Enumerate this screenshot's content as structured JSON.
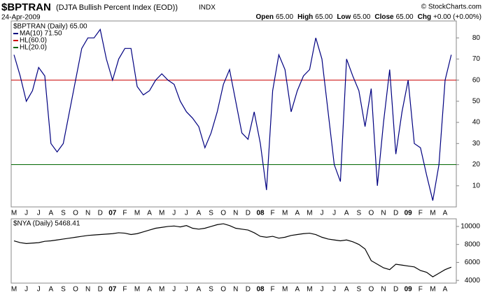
{
  "header": {
    "symbol": "$BPTRAN",
    "description": "(DJTA Bullish Percent Index (EOD))",
    "exchange": "INDX",
    "date": "24-Apr-2009",
    "copyright": "© StockCharts.com",
    "quote": [
      {
        "label": "Open",
        "value": "65.00"
      },
      {
        "label": "High",
        "value": "65.00"
      },
      {
        "label": "Low",
        "value": "65.00"
      },
      {
        "label": "Close",
        "value": "65.00"
      },
      {
        "label": "Chg",
        "value": "+0.00 (+0.00%)"
      }
    ]
  },
  "chart_data": [
    {
      "type": "line",
      "legend_title": "$BPTRAN (Daily) 65.00",
      "categories": [
        "M",
        null,
        "J",
        null,
        "J",
        null,
        "A",
        null,
        "S",
        null,
        "O",
        null,
        "N",
        null,
        "D",
        null,
        "07",
        null,
        "F",
        null,
        "M",
        null,
        "A",
        null,
        "M",
        null,
        "J",
        null,
        "J",
        null,
        "A",
        null,
        "S",
        null,
        "O",
        null,
        "N",
        null,
        "D",
        null,
        "08",
        null,
        "F",
        null,
        "M",
        null,
        "A",
        null,
        "M",
        null,
        "J",
        null,
        "J",
        null,
        "A",
        null,
        "S",
        null,
        "O",
        null,
        "N",
        null,
        "D",
        null,
        "09",
        null,
        "F",
        null,
        "M",
        null,
        "A",
        null
      ],
      "series": [
        {
          "name": "MA(10) 71.50",
          "color": "#000080",
          "values": [
            72,
            62,
            50,
            55,
            66,
            62,
            30,
            26,
            30,
            45,
            60,
            75,
            80,
            80,
            84,
            70,
            60,
            70,
            75,
            75,
            57,
            53,
            55,
            60,
            63,
            60,
            58,
            50,
            45,
            42,
            38,
            28,
            35,
            45,
            58,
            65,
            50,
            35,
            32,
            45,
            30,
            8,
            55,
            72,
            65,
            45,
            55,
            62,
            65,
            80,
            70,
            45,
            20,
            12,
            70,
            62,
            55,
            38,
            56,
            10,
            40,
            65,
            25,
            45,
            60,
            30,
            28,
            15,
            3,
            20,
            60,
            72
          ]
        }
      ],
      "reference_lines": [
        {
          "name": "HL(60.0)",
          "value": 60,
          "color": "#cc0000"
        },
        {
          "name": "HL(20.0)",
          "value": 20,
          "color": "#006600"
        }
      ],
      "ylim": [
        0,
        88
      ],
      "yticks": [
        10,
        20,
        30,
        40,
        50,
        60,
        70,
        80
      ],
      "grid": false
    },
    {
      "type": "line",
      "legend_title": "$NYA (Daily) 5468.41",
      "categories": [
        "M",
        null,
        "J",
        null,
        "J",
        null,
        "A",
        null,
        "S",
        null,
        "O",
        null,
        "N",
        null,
        "D",
        null,
        "07",
        null,
        "F",
        null,
        "M",
        null,
        "A",
        null,
        "M",
        null,
        "J",
        null,
        "J",
        null,
        "A",
        null,
        "S",
        null,
        "O",
        null,
        "N",
        null,
        "D",
        null,
        "08",
        null,
        "F",
        null,
        "M",
        null,
        "A",
        null,
        "M",
        null,
        "J",
        null,
        "J",
        null,
        "A",
        null,
        "S",
        null,
        "O",
        null,
        "N",
        null,
        "D",
        null,
        "09",
        null,
        "F",
        null,
        "M",
        null,
        "A",
        null
      ],
      "series": [
        {
          "name": "$NYA",
          "color": "#000000",
          "values": [
            8400,
            8200,
            8100,
            8150,
            8200,
            8350,
            8400,
            8500,
            8600,
            8700,
            8800,
            8900,
            9000,
            9050,
            9100,
            9150,
            9200,
            9300,
            9250,
            9100,
            9200,
            9400,
            9600,
            9800,
            9900,
            10000,
            10050,
            9950,
            10100,
            9800,
            9700,
            9800,
            10000,
            10200,
            10300,
            10100,
            9800,
            9700,
            9600,
            9300,
            8900,
            8800,
            8900,
            8700,
            8800,
            9000,
            9100,
            9200,
            9250,
            9100,
            8800,
            8600,
            8500,
            8400,
            8500,
            8300,
            8000,
            7500,
            6200,
            5800,
            5400,
            5200,
            5800,
            5700,
            5600,
            5500,
            5100,
            4900,
            4400,
            4800,
            5200,
            5470
          ]
        }
      ],
      "ylim": [
        3700,
        10850
      ],
      "yticks": [
        4000,
        6000,
        8000,
        10000
      ],
      "grid": false
    }
  ]
}
